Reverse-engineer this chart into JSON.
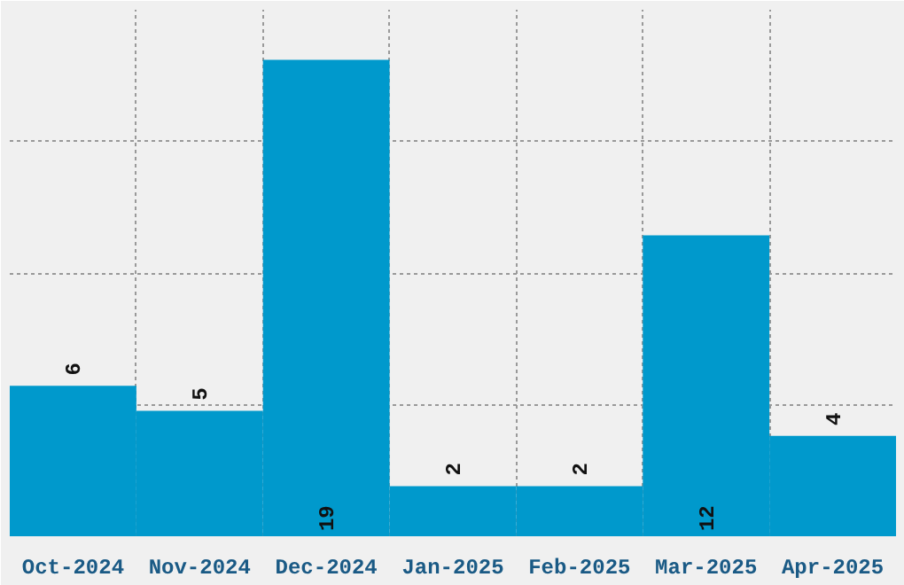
{
  "chart_data": {
    "type": "bar",
    "categories": [
      "Oct-2024",
      "Nov-2024",
      "Dec-2024",
      "Jan-2025",
      "Feb-2025",
      "Mar-2025",
      "Apr-2025"
    ],
    "values": [
      6,
      5,
      19,
      2,
      2,
      12,
      4
    ],
    "color": "#0099cc",
    "ylim": [
      0,
      21
    ],
    "yticks": [
      {
        "value": 0,
        "label": null
      },
      {
        "value": 5.25,
        "label": null
      },
      {
        "value": 10.5,
        "label": null
      },
      {
        "value": 15.75,
        "label": null
      },
      {
        "value": 21,
        "label": null
      }
    ],
    "tick_labels": "x",
    "grid": true,
    "data_labels": true
  }
}
